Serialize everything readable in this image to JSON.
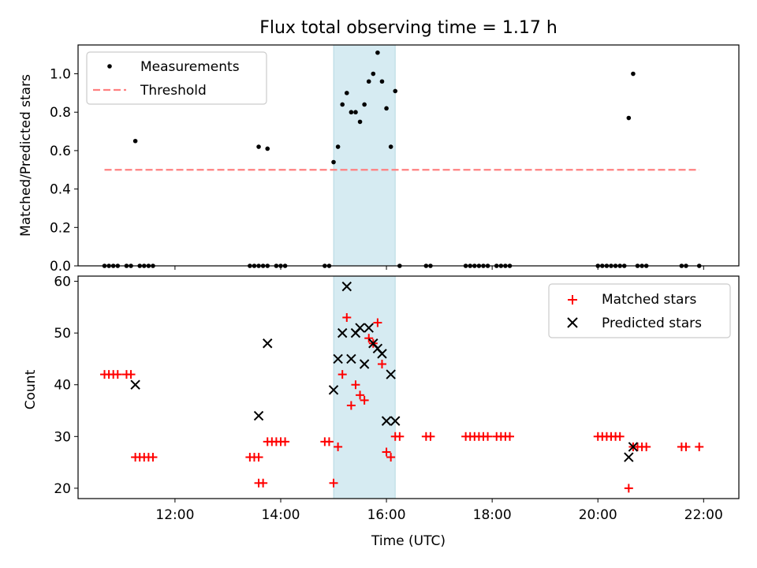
{
  "title": "Flux total observing time = 1.17 h",
  "colors": {
    "highlight": "#add8e6",
    "matched": "#ff0000",
    "predicted": "#000000",
    "measurement": "#000000",
    "threshold": "#ff8080"
  },
  "chart_data": [
    {
      "type": "scatter",
      "panel": "top",
      "ylabel": "Matched/Predicted stars",
      "xlabel": "",
      "xlim": [
        "10:10",
        "22:40"
      ],
      "ylim": [
        0,
        1.15
      ],
      "yticks": [
        0.0,
        0.2,
        0.4,
        0.6,
        0.8,
        1.0
      ],
      "ytick_labels": [
        "0.0",
        "0.2",
        "0.4",
        "0.6",
        "0.8",
        "1.0"
      ],
      "xticks": [
        "12:00",
        "14:00",
        "16:00",
        "18:00",
        "20:00",
        "22:00"
      ],
      "highlight": [
        "15:00",
        "16:10"
      ],
      "legend_position": "top-left",
      "legend": [
        "Measurements",
        "Threshold"
      ],
      "threshold": {
        "name": "Threshold",
        "y": 0.5,
        "x": [
          "10:40",
          "21:55"
        ]
      },
      "series": [
        {
          "name": "Measurements",
          "points": [
            [
              "10:40",
              0
            ],
            [
              "10:45",
              0
            ],
            [
              "10:50",
              0
            ],
            [
              "10:55",
              0
            ],
            [
              "11:05",
              0
            ],
            [
              "11:10",
              0
            ],
            [
              "11:15",
              0.65
            ],
            [
              "11:20",
              0
            ],
            [
              "11:25",
              0
            ],
            [
              "11:30",
              0
            ],
            [
              "11:35",
              0
            ],
            [
              "13:25",
              0
            ],
            [
              "13:30",
              0
            ],
            [
              "13:35",
              0
            ],
            [
              "13:40",
              0
            ],
            [
              "13:35",
              0.62
            ],
            [
              "13:45",
              0
            ],
            [
              "13:45",
              0.61
            ],
            [
              "13:55",
              0
            ],
            [
              "14:00",
              0
            ],
            [
              "14:05",
              0
            ],
            [
              "14:50",
              0
            ],
            [
              "14:55",
              0
            ],
            [
              "15:00",
              0.54
            ],
            [
              "15:05",
              0.62
            ],
            [
              "15:10",
              0.84
            ],
            [
              "15:15",
              0.9
            ],
            [
              "15:20",
              0.8
            ],
            [
              "15:25",
              0.8
            ],
            [
              "15:30",
              0.75
            ],
            [
              "15:35",
              0.84
            ],
            [
              "15:40",
              0.96
            ],
            [
              "15:45",
              1.0
            ],
            [
              "15:50",
              1.11
            ],
            [
              "15:55",
              0.96
            ],
            [
              "16:00",
              0.82
            ],
            [
              "16:05",
              0.62
            ],
            [
              "16:10",
              0.91
            ],
            [
              "16:15",
              0
            ],
            [
              "16:45",
              0
            ],
            [
              "16:50",
              0
            ],
            [
              "17:30",
              0
            ],
            [
              "17:35",
              0
            ],
            [
              "17:40",
              0
            ],
            [
              "17:45",
              0
            ],
            [
              "17:50",
              0
            ],
            [
              "17:55",
              0
            ],
            [
              "18:05",
              0
            ],
            [
              "18:10",
              0
            ],
            [
              "18:15",
              0
            ],
            [
              "18:20",
              0
            ],
            [
              "20:00",
              0
            ],
            [
              "20:05",
              0
            ],
            [
              "20:10",
              0
            ],
            [
              "20:15",
              0
            ],
            [
              "20:20",
              0
            ],
            [
              "20:25",
              0
            ],
            [
              "20:30",
              0
            ],
            [
              "20:35",
              0.77
            ],
            [
              "20:40",
              1.0
            ],
            [
              "20:45",
              0
            ],
            [
              "20:50",
              0
            ],
            [
              "20:55",
              0
            ],
            [
              "21:35",
              0
            ],
            [
              "21:40",
              0
            ],
            [
              "21:55",
              0
            ]
          ]
        }
      ]
    },
    {
      "type": "scatter",
      "panel": "bottom",
      "ylabel": "Count",
      "xlabel": "Time (UTC)",
      "xlim": [
        "10:10",
        "22:40"
      ],
      "ylim": [
        18,
        61
      ],
      "yticks": [
        20,
        30,
        40,
        50,
        60
      ],
      "ytick_labels": [
        "20",
        "30",
        "40",
        "50",
        "60"
      ],
      "xticks": [
        "12:00",
        "14:00",
        "16:00",
        "18:00",
        "20:00",
        "22:00"
      ],
      "xtick_labels": [
        "12:00",
        "14:00",
        "16:00",
        "18:00",
        "20:00",
        "22:00"
      ],
      "highlight": [
        "15:00",
        "16:10"
      ],
      "legend_position": "top-right",
      "legend": [
        "Matched stars",
        "Predicted stars"
      ],
      "series": [
        {
          "name": "Matched stars",
          "marker": "plus",
          "points": [
            [
              "10:40",
              42
            ],
            [
              "10:45",
              42
            ],
            [
              "10:50",
              42
            ],
            [
              "10:55",
              42
            ],
            [
              "11:05",
              42
            ],
            [
              "11:10",
              42
            ],
            [
              "11:15",
              26
            ],
            [
              "11:20",
              26
            ],
            [
              "11:25",
              26
            ],
            [
              "11:30",
              26
            ],
            [
              "11:35",
              26
            ],
            [
              "13:25",
              26
            ],
            [
              "13:30",
              26
            ],
            [
              "13:35",
              26
            ],
            [
              "13:35",
              21
            ],
            [
              "13:40",
              21
            ],
            [
              "13:45",
              29
            ],
            [
              "13:50",
              29
            ],
            [
              "13:55",
              29
            ],
            [
              "14:00",
              29
            ],
            [
              "14:05",
              29
            ],
            [
              "14:50",
              29
            ],
            [
              "14:55",
              29
            ],
            [
              "15:00",
              21
            ],
            [
              "15:05",
              28
            ],
            [
              "15:10",
              42
            ],
            [
              "15:15",
              53
            ],
            [
              "15:20",
              36
            ],
            [
              "15:25",
              40
            ],
            [
              "15:30",
              38
            ],
            [
              "15:35",
              37
            ],
            [
              "15:40",
              49
            ],
            [
              "15:45",
              48
            ],
            [
              "15:50",
              52
            ],
            [
              "15:55",
              44
            ],
            [
              "16:00",
              27
            ],
            [
              "16:05",
              26
            ],
            [
              "16:10",
              30
            ],
            [
              "16:15",
              30
            ],
            [
              "16:45",
              30
            ],
            [
              "16:50",
              30
            ],
            [
              "17:30",
              30
            ],
            [
              "17:35",
              30
            ],
            [
              "17:40",
              30
            ],
            [
              "17:45",
              30
            ],
            [
              "17:50",
              30
            ],
            [
              "17:55",
              30
            ],
            [
              "18:05",
              30
            ],
            [
              "18:10",
              30
            ],
            [
              "18:15",
              30
            ],
            [
              "18:20",
              30
            ],
            [
              "20:00",
              30
            ],
            [
              "20:05",
              30
            ],
            [
              "20:10",
              30
            ],
            [
              "20:15",
              30
            ],
            [
              "20:20",
              30
            ],
            [
              "20:25",
              30
            ],
            [
              "20:35",
              20
            ],
            [
              "20:40",
              28
            ],
            [
              "20:45",
              28
            ],
            [
              "20:50",
              28
            ],
            [
              "20:55",
              28
            ],
            [
              "21:35",
              28
            ],
            [
              "21:40",
              28
            ],
            [
              "21:55",
              28
            ]
          ]
        },
        {
          "name": "Predicted stars",
          "marker": "x",
          "points": [
            [
              "11:15",
              40
            ],
            [
              "13:35",
              34
            ],
            [
              "13:45",
              48
            ],
            [
              "15:00",
              39
            ],
            [
              "15:05",
              45
            ],
            [
              "15:10",
              50
            ],
            [
              "15:15",
              59
            ],
            [
              "15:20",
              45
            ],
            [
              "15:25",
              50
            ],
            [
              "15:30",
              51
            ],
            [
              "15:35",
              44
            ],
            [
              "15:40",
              51
            ],
            [
              "15:45",
              48
            ],
            [
              "15:50",
              47
            ],
            [
              "15:55",
              46
            ],
            [
              "16:00",
              33
            ],
            [
              "16:05",
              42
            ],
            [
              "16:10",
              33
            ],
            [
              "20:35",
              26
            ],
            [
              "20:40",
              28
            ]
          ]
        }
      ]
    }
  ]
}
